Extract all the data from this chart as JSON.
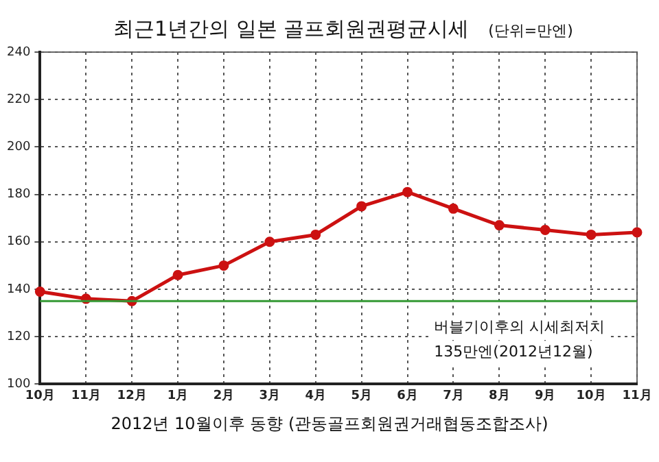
{
  "chart_data": {
    "type": "line",
    "title": "최근1년간의 일본 골프회원권평균시세",
    "subtitle": "(단위=만엔)",
    "categories": [
      "10月",
      "11月",
      "12月",
      "1月",
      "2月",
      "3月",
      "4月",
      "5月",
      "6月",
      "7月",
      "8月",
      "9月",
      "10月",
      "11月"
    ],
    "series": [
      {
        "color": "#cc1111",
        "values": [
          139,
          136,
          135,
          146,
          150,
          160,
          163,
          175,
          181,
          174,
          167,
          165,
          163,
          164
        ]
      }
    ],
    "ylim": [
      100,
      240
    ],
    "yticks": [
      100,
      120,
      140,
      160,
      180,
      200,
      220,
      240
    ],
    "grid": true,
    "marker": "circle",
    "line_style": "solid",
    "legend": false,
    "ref_lines": [
      {
        "axis": "y",
        "value": 135,
        "label": "버블기이후의 시세최저치 135만엔(2012년12월)",
        "color": "#339933"
      }
    ],
    "annotations": [
      "2012년 10월이후 동향 (관동골프회원권거래협동조합조사)"
    ]
  }
}
